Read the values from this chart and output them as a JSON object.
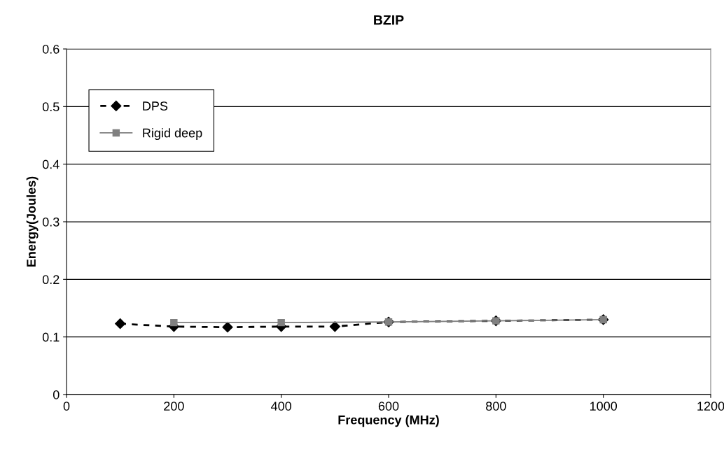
{
  "chart_data": {
    "type": "line",
    "title": "BZIP",
    "xlabel": "Frequency (MHz)",
    "ylabel": "Energy(Joules)",
    "xlim": [
      0,
      1200
    ],
    "xticks": [
      0,
      200,
      400,
      600,
      800,
      1000,
      1200
    ],
    "ylim": [
      0,
      0.6
    ],
    "yticks": [
      0,
      0.1,
      0.2,
      0.3,
      0.4,
      0.5,
      0.6
    ],
    "grid": "y",
    "legend": "top left",
    "series": [
      {
        "name": "DPS",
        "color": "#000000",
        "marker": "diamond",
        "line_style": "dashed",
        "x": [
          100,
          200,
          300,
          400,
          500,
          600,
          800,
          1000
        ],
        "values": [
          0.123,
          0.118,
          0.117,
          0.118,
          0.118,
          0.126,
          0.128,
          0.13
        ]
      },
      {
        "name": "Rigid deep",
        "color": "#808080",
        "marker": "square",
        "line_style": "solid",
        "x": [
          200,
          400,
          600,
          800,
          1000
        ],
        "values": [
          0.125,
          0.125,
          0.126,
          0.128,
          0.13
        ]
      }
    ]
  }
}
